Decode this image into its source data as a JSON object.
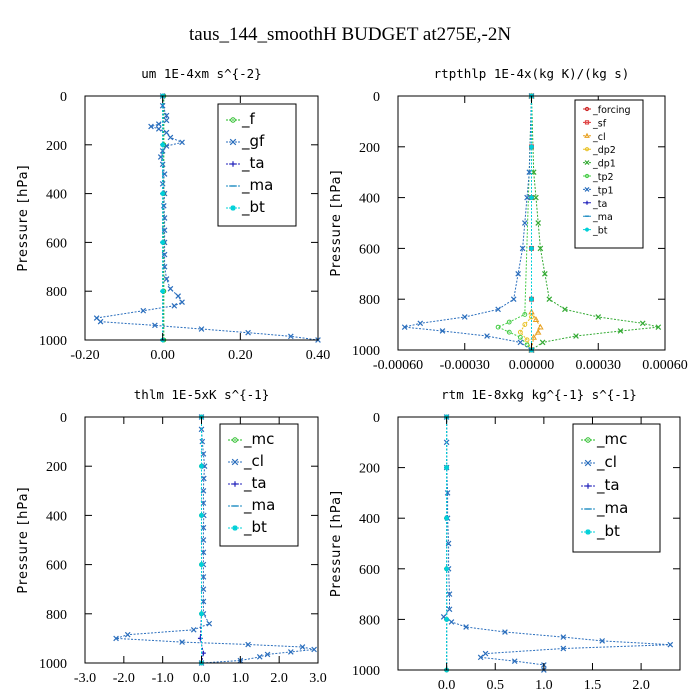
{
  "page": {
    "title": "taus_144_smoothH  BUDGET at275E,-2N"
  },
  "chart_data": [
    {
      "type": "line",
      "title": "um  1E-4xm s^{-2}",
      "ylabel": "Pressure [hPa]",
      "xlim": [
        -0.2,
        0.4
      ],
      "ylim": [
        1000,
        0
      ],
      "xticks": [
        "-0.20",
        "0.00",
        "0.20",
        "0.40"
      ],
      "xtick_values": [
        -0.2,
        0.0,
        0.2,
        0.4
      ],
      "yticks": [
        "0",
        "200",
        "400",
        "600",
        "800",
        "1000"
      ],
      "ytick_values": [
        0,
        200,
        400,
        600,
        800,
        1000
      ],
      "grid": false,
      "legend": {
        "position": "top-right",
        "size": "large"
      },
      "series": [
        {
          "name": "_f",
          "color": "#22bb22",
          "marker": "o",
          "y": [
            0,
            200,
            400,
            600,
            800,
            1000
          ],
          "x": [
            0.003,
            0.003,
            0.003,
            0.003,
            0.003,
            0.003
          ]
        },
        {
          "name": "_gf",
          "color": "#2a6ebd",
          "marker": "x",
          "y": [
            0,
            40,
            80,
            100,
            115,
            125,
            135,
            150,
            170,
            190,
            205,
            225,
            250,
            280,
            320,
            360,
            400,
            450,
            500,
            550,
            600,
            650,
            700,
            750,
            790,
            820,
            845,
            860,
            880,
            910,
            925,
            940,
            955,
            970,
            985,
            1000
          ],
          "x": [
            0.0,
            0.0,
            0.01,
            0.01,
            -0.01,
            -0.03,
            -0.01,
            0.01,
            0.02,
            0.05,
            0.01,
            0.0,
            -0.005,
            0.0,
            0.005,
            0.0,
            0.005,
            0.003,
            0.005,
            0.005,
            0.005,
            0.005,
            0.005,
            0.01,
            0.02,
            0.04,
            0.05,
            0.03,
            -0.05,
            -0.17,
            -0.16,
            -0.02,
            0.1,
            0.22,
            0.33,
            0.4
          ]
        },
        {
          "name": "_ta",
          "color": "#2222bb",
          "marker": "+",
          "y": [
            0,
            200,
            400,
            600,
            800,
            1000
          ],
          "x": [
            0.0,
            0.0,
            0.0,
            0.0,
            0.0,
            0.0
          ]
        },
        {
          "name": "_ma",
          "color": "#1a8ac0",
          "marker": "-",
          "y": [
            0,
            200,
            400,
            600,
            800,
            1000
          ],
          "x": [
            0.0,
            0.0,
            0.0,
            0.0,
            0.0,
            0.0
          ]
        },
        {
          "name": "_bt",
          "color": "#00d0d8",
          "marker": "*",
          "y": [
            0,
            200,
            400,
            600,
            800,
            1000
          ],
          "x": [
            0.0,
            0.0,
            0.0,
            0.0,
            0.0,
            0.0
          ]
        }
      ]
    },
    {
      "type": "line",
      "title": "rtpthlp  1E-4x(kg K)/(kg s)",
      "ylabel": "Pressure [hPa]",
      "xlim": [
        -0.0006,
        0.0006
      ],
      "ylim": [
        1000,
        0
      ],
      "xticks": [
        "-0.00060",
        "-0.00030",
        "0.00000",
        "0.00030",
        "0.00060"
      ],
      "xtick_values": [
        -0.0006,
        -0.0003,
        0.0,
        0.0003,
        0.0006
      ],
      "yticks": [
        "0",
        "200",
        "400",
        "600",
        "800",
        "1000"
      ],
      "ytick_values": [
        0,
        200,
        400,
        600,
        800,
        1000
      ],
      "grid": false,
      "legend": {
        "position": "top-right",
        "size": "small"
      },
      "series": [
        {
          "name": "_forcing",
          "color": "#cc2020",
          "marker": "o",
          "y": [
            0,
            200,
            400,
            600,
            800,
            1000
          ],
          "x": [
            0.0,
            0.0,
            0.0,
            0.0,
            0.0,
            0.0
          ]
        },
        {
          "name": "_sf",
          "color": "#dd3333",
          "marker": "s",
          "y": [
            0,
            200,
            400,
            600,
            800,
            1000
          ],
          "x": [
            0.0,
            0.0,
            0.0,
            0.0,
            0.0,
            0.0
          ]
        },
        {
          "name": "_cl",
          "color": "#e8a020",
          "marker": "^",
          "y": [
            0,
            850,
            880,
            910,
            930,
            950,
            1000
          ],
          "x": [
            0.0,
            0.0,
            2e-05,
            4e-05,
            3e-05,
            1e-05,
            0.0
          ]
        },
        {
          "name": "_dp2",
          "color": "#e8c020",
          "marker": "o",
          "y": [
            0,
            870,
            900,
            930,
            960,
            1000
          ],
          "x": [
            0.0,
            0.0,
            -3e-05,
            -5e-05,
            -2e-05,
            0.0
          ]
        },
        {
          "name": "_dp1",
          "color": "#33aa33",
          "marker": "x",
          "y": [
            0,
            300,
            400,
            500,
            600,
            700,
            800,
            840,
            870,
            895,
            910,
            925,
            945,
            970,
            1000
          ],
          "x": [
            0.0,
            1e-05,
            2e-05,
            3e-05,
            4e-05,
            6e-05,
            8e-05,
            0.00015,
            0.0003,
            0.0005,
            0.00057,
            0.0004,
            0.0002,
            5e-05,
            0.0
          ]
        },
        {
          "name": "_tp2",
          "color": "#44cc44",
          "marker": "o",
          "y": [
            0,
            860,
            890,
            910,
            930,
            950,
            980,
            1000
          ],
          "x": [
            0.0,
            -3e-05,
            -0.0001,
            -0.00015,
            -0.0001,
            -5e-05,
            -2e-05,
            0.0
          ]
        },
        {
          "name": "_tp1",
          "color": "#2a6ebd",
          "marker": "x",
          "y": [
            0,
            300,
            400,
            500,
            600,
            700,
            800,
            840,
            870,
            895,
            910,
            925,
            945,
            970,
            1000
          ],
          "x": [
            0.0,
            -1e-05,
            -2e-05,
            -3e-05,
            -4e-05,
            -6e-05,
            -8e-05,
            -0.00015,
            -0.0003,
            -0.0005,
            -0.00057,
            -0.0004,
            -0.0002,
            -5e-05,
            0.0
          ]
        },
        {
          "name": "_ta",
          "color": "#2222bb",
          "marker": "+",
          "y": [
            0,
            200,
            400,
            600,
            800,
            1000
          ],
          "x": [
            0.0,
            0.0,
            0.0,
            0.0,
            0.0,
            0.0
          ]
        },
        {
          "name": "_ma",
          "color": "#1a8ac0",
          "marker": "-",
          "y": [
            0,
            200,
            400,
            600,
            800,
            1000
          ],
          "x": [
            0.0,
            0.0,
            0.0,
            0.0,
            0.0,
            0.0
          ]
        },
        {
          "name": "_bt",
          "color": "#00d0d8",
          "marker": "*",
          "y": [
            0,
            200,
            400,
            600,
            800,
            1000
          ],
          "x": [
            0.0,
            0.0,
            0.0,
            0.0,
            0.0,
            0.0
          ]
        }
      ]
    },
    {
      "type": "line",
      "title": "thlm  1E-5xK s^{-1}",
      "ylabel": "Pressure [hPa]",
      "xlim": [
        -3.0,
        3.0
      ],
      "ylim": [
        1000,
        0
      ],
      "xticks": [
        "-3.0",
        "-2.0",
        "-1.0",
        "0.0",
        "1.0",
        "2.0",
        "3.0"
      ],
      "xtick_values": [
        -3.0,
        -2.0,
        -1.0,
        0.0,
        1.0,
        2.0,
        3.0
      ],
      "yticks": [
        "0",
        "200",
        "400",
        "600",
        "800",
        "1000"
      ],
      "ytick_values": [
        0,
        200,
        400,
        600,
        800,
        1000
      ],
      "grid": false,
      "legend": {
        "position": "top-right",
        "size": "large"
      },
      "series": [
        {
          "name": "_mc",
          "color": "#22bb22",
          "marker": "o",
          "y": [
            0,
            200,
            400,
            600,
            800,
            1000
          ],
          "x": [
            0.0,
            0.0,
            0.0,
            0.0,
            0.0,
            0.0
          ]
        },
        {
          "name": "_cl",
          "color": "#2a6ebd",
          "marker": "x",
          "y": [
            0,
            50,
            100,
            150,
            200,
            250,
            300,
            350,
            400,
            450,
            500,
            550,
            600,
            650,
            700,
            750,
            800,
            840,
            865,
            885,
            900,
            915,
            925,
            935,
            945,
            955,
            965,
            975,
            990,
            1000
          ],
          "x": [
            0.0,
            0.0,
            0.02,
            0.05,
            0.08,
            0.06,
            0.05,
            0.05,
            0.06,
            0.05,
            0.05,
            0.05,
            0.05,
            0.05,
            0.05,
            0.05,
            0.05,
            0.2,
            -0.2,
            -1.9,
            -2.2,
            -0.5,
            1.2,
            2.6,
            2.9,
            2.3,
            1.7,
            1.5,
            1.0,
            0.0
          ]
        },
        {
          "name": "_ta",
          "color": "#2222bb",
          "marker": "+",
          "y": [
            0,
            800,
            900,
            960,
            1000
          ],
          "x": [
            0.0,
            0.0,
            -0.03,
            0.05,
            0.0
          ]
        },
        {
          "name": "_ma",
          "color": "#1a8ac0",
          "marker": "-",
          "y": [
            0,
            200,
            400,
            600,
            800,
            1000
          ],
          "x": [
            0.0,
            0.0,
            0.0,
            0.0,
            0.0,
            0.0
          ]
        },
        {
          "name": "_bt",
          "color": "#00d0d8",
          "marker": "*",
          "y": [
            0,
            200,
            400,
            600,
            800,
            1000
          ],
          "x": [
            0.0,
            0.0,
            0.0,
            0.0,
            0.0,
            0.0
          ]
        }
      ]
    },
    {
      "type": "line",
      "title": "rtm  1E-8xkg kg^{-1} s^{-1}",
      "ylabel": "Pressure [hPa]",
      "xlim": [
        -0.5,
        2.4
      ],
      "ylim": [
        1000,
        0
      ],
      "xticks": [
        "0.0",
        "0.5",
        "1.0",
        "1.5",
        "2.0"
      ],
      "xtick_values": [
        0.0,
        0.5,
        1.0,
        1.5,
        2.0
      ],
      "yticks": [
        "0",
        "200",
        "400",
        "600",
        "800",
        "1000"
      ],
      "ytick_values": [
        0,
        200,
        400,
        600,
        800,
        1000
      ],
      "grid": false,
      "legend": {
        "position": "top-right",
        "size": "large"
      },
      "series": [
        {
          "name": "_mc",
          "color": "#22bb22",
          "marker": "o",
          "y": [
            0,
            200,
            400,
            600,
            800,
            1000
          ],
          "x": [
            0.0,
            0.0,
            0.0,
            0.0,
            0.0,
            0.0
          ]
        },
        {
          "name": "_cl",
          "color": "#2a6ebd",
          "marker": "x",
          "y": [
            0,
            100,
            200,
            300,
            400,
            500,
            600,
            700,
            760,
            790,
            810,
            830,
            850,
            870,
            885,
            900,
            915,
            935,
            950,
            965,
            980,
            1000
          ],
          "x": [
            0.0,
            0.0,
            0.0,
            0.01,
            0.01,
            0.02,
            0.02,
            0.03,
            0.03,
            -0.03,
            0.05,
            0.2,
            0.6,
            1.2,
            1.6,
            2.3,
            1.2,
            0.4,
            0.35,
            0.7,
            1.0,
            1.0
          ]
        },
        {
          "name": "_ta",
          "color": "#2222bb",
          "marker": "+",
          "y": [
            0,
            200,
            400,
            600,
            800,
            1000
          ],
          "x": [
            0.0,
            0.0,
            0.0,
            0.0,
            0.0,
            0.0
          ]
        },
        {
          "name": "_ma",
          "color": "#1a8ac0",
          "marker": "-",
          "y": [
            0,
            200,
            400,
            600,
            800,
            1000
          ],
          "x": [
            0.0,
            0.0,
            0.0,
            0.0,
            0.0,
            0.0
          ]
        },
        {
          "name": "_bt",
          "color": "#00d0d8",
          "marker": "*",
          "y": [
            0,
            200,
            400,
            600,
            800,
            1000
          ],
          "x": [
            0.0,
            0.0,
            0.0,
            0.0,
            0.0,
            0.0
          ]
        }
      ]
    }
  ]
}
